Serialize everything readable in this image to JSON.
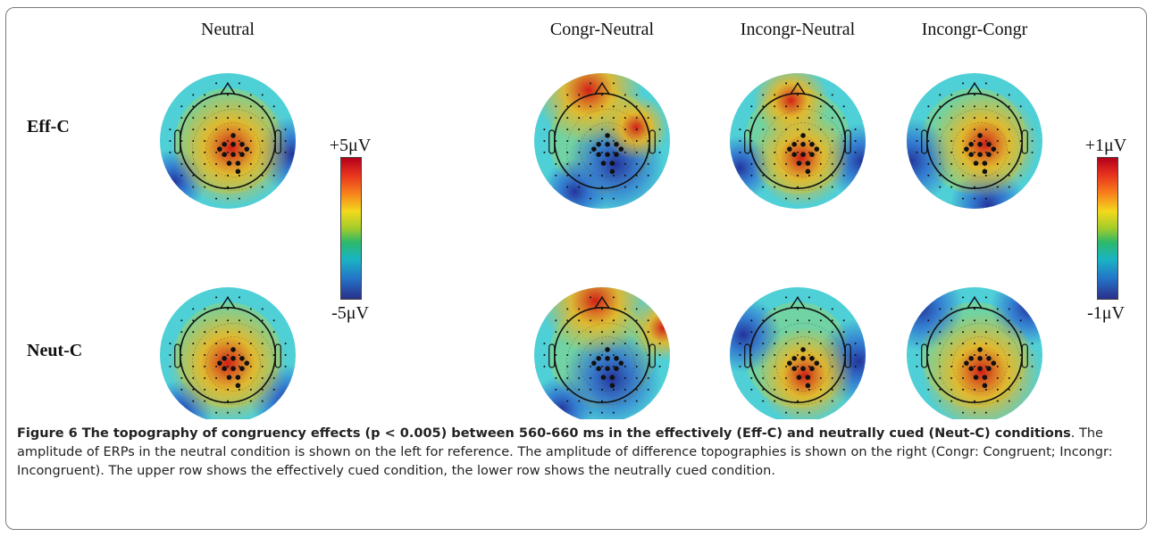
{
  "columns": {
    "neutral": "Neutral",
    "congr_neutral": "Congr-Neutral",
    "incongr_neutral": "Incongr-Neutral",
    "incongr_congr": "Incongr-Congr"
  },
  "rows": {
    "eff": "Eff-C",
    "neut": "Neut-C"
  },
  "scales": {
    "left": {
      "max": "+5μV",
      "min": "-5μV"
    },
    "right": {
      "max": "+1μV",
      "min": "-1μV"
    }
  },
  "caption": {
    "title": "Figure 6 The topography of congruency effects (p < 0.005) between 560-660 ms in the effectively (Eff-C) and neutrally cued (Neut-C) conditions",
    "body": ". The amplitude of ERPs in the neutral condition is shown on the left for reference. The amplitude of difference topographies is shown on the right (Congr: Congruent; Incongr: Incongruent). The upper row shows the effectively cued condition, the lower row shows the neutrally cued condition."
  },
  "colors": {
    "frame": "#7a7a7a",
    "hot": "#d42a1e",
    "cold": "#2a48b8",
    "mid": "#3fd0e0"
  }
}
